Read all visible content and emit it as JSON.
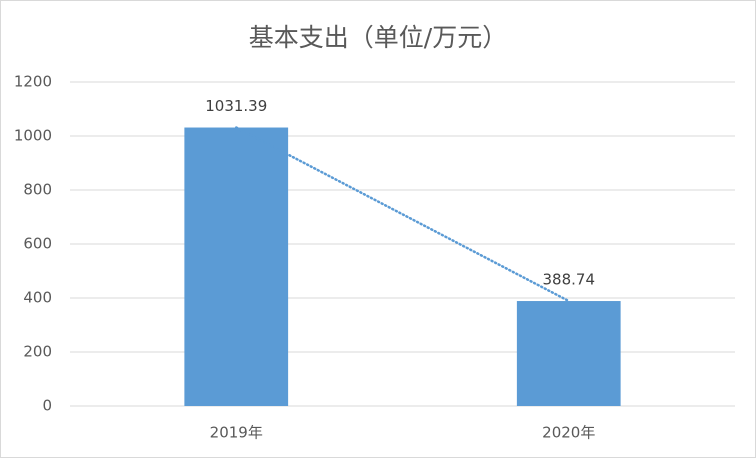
{
  "chart_data": {
    "type": "bar",
    "title": "基本支出（单位/万元）",
    "categories": [
      "2019年",
      "2020年"
    ],
    "values": [
      1031.39,
      388.74
    ],
    "color": "#5b9bd5",
    "ylim": [
      0,
      1200
    ],
    "yticks": [
      0,
      200,
      400,
      600,
      800,
      1000,
      1200
    ],
    "grid": true,
    "data_labels": true,
    "trendline": true
  }
}
